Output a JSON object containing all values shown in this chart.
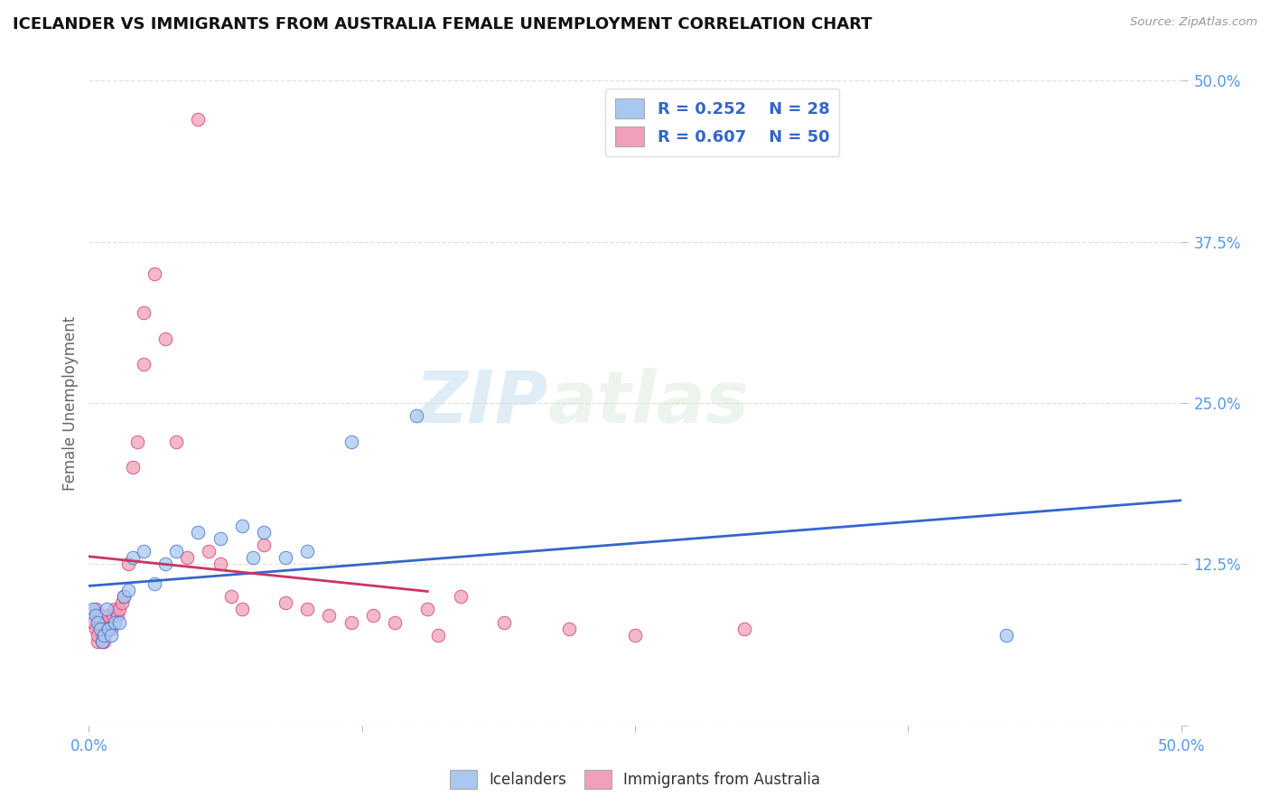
{
  "title": "ICELANDER VS IMMIGRANTS FROM AUSTRALIA FEMALE UNEMPLOYMENT CORRELATION CHART",
  "source": "Source: ZipAtlas.com",
  "ylabel": "Female Unemployment",
  "xlim": [
    0.0,
    0.5
  ],
  "ylim": [
    0.0,
    0.5
  ],
  "watermark_zip": "ZIP",
  "watermark_atlas": "atlas",
  "color_icelanders": "#a8c8f0",
  "color_australia": "#f0a0b8",
  "trendline_color_icelanders": "#3366cc",
  "trendline_color_australia": "#cc3366",
  "icelanders_x": [
    0.002,
    0.003,
    0.004,
    0.005,
    0.006,
    0.007,
    0.008,
    0.009,
    0.01,
    0.012,
    0.014,
    0.016,
    0.018,
    0.02,
    0.025,
    0.03,
    0.035,
    0.04,
    0.05,
    0.06,
    0.07,
    0.075,
    0.08,
    0.09,
    0.1,
    0.12,
    0.15,
    0.42
  ],
  "icelanders_y": [
    0.09,
    0.085,
    0.08,
    0.075,
    0.065,
    0.07,
    0.09,
    0.075,
    0.07,
    0.08,
    0.08,
    0.1,
    0.105,
    0.13,
    0.135,
    0.11,
    0.125,
    0.135,
    0.15,
    0.145,
    0.155,
    0.13,
    0.15,
    0.13,
    0.135,
    0.22,
    0.24,
    0.07
  ],
  "australia_x": [
    0.002,
    0.003,
    0.003,
    0.004,
    0.004,
    0.005,
    0.005,
    0.006,
    0.006,
    0.007,
    0.007,
    0.008,
    0.008,
    0.009,
    0.009,
    0.01,
    0.011,
    0.012,
    0.013,
    0.014,
    0.015,
    0.016,
    0.018,
    0.02,
    0.022,
    0.025,
    0.025,
    0.03,
    0.035,
    0.04,
    0.045,
    0.05,
    0.055,
    0.06,
    0.065,
    0.07,
    0.08,
    0.09,
    0.1,
    0.11,
    0.12,
    0.13,
    0.14,
    0.155,
    0.16,
    0.17,
    0.19,
    0.22,
    0.25,
    0.3
  ],
  "australia_y": [
    0.08,
    0.09,
    0.075,
    0.065,
    0.07,
    0.08,
    0.085,
    0.075,
    0.065,
    0.07,
    0.065,
    0.075,
    0.08,
    0.085,
    0.075,
    0.075,
    0.085,
    0.09,
    0.085,
    0.09,
    0.095,
    0.1,
    0.125,
    0.2,
    0.22,
    0.28,
    0.32,
    0.35,
    0.3,
    0.22,
    0.13,
    0.47,
    0.135,
    0.125,
    0.1,
    0.09,
    0.14,
    0.095,
    0.09,
    0.085,
    0.08,
    0.085,
    0.08,
    0.09,
    0.07,
    0.1,
    0.08,
    0.075,
    0.07,
    0.075
  ],
  "background_color": "#ffffff",
  "grid_color": "#e0e0e0",
  "grid_linestyle": "--",
  "legend_items": [
    {
      "r": "R = 0.252",
      "n": "N = 28"
    },
    {
      "r": "R = 0.607",
      "n": "N = 50"
    }
  ],
  "bottom_legend": [
    "Icelanders",
    "Immigrants from Australia"
  ],
  "title_fontsize": 13,
  "tick_fontsize": 12,
  "label_fontsize": 12
}
